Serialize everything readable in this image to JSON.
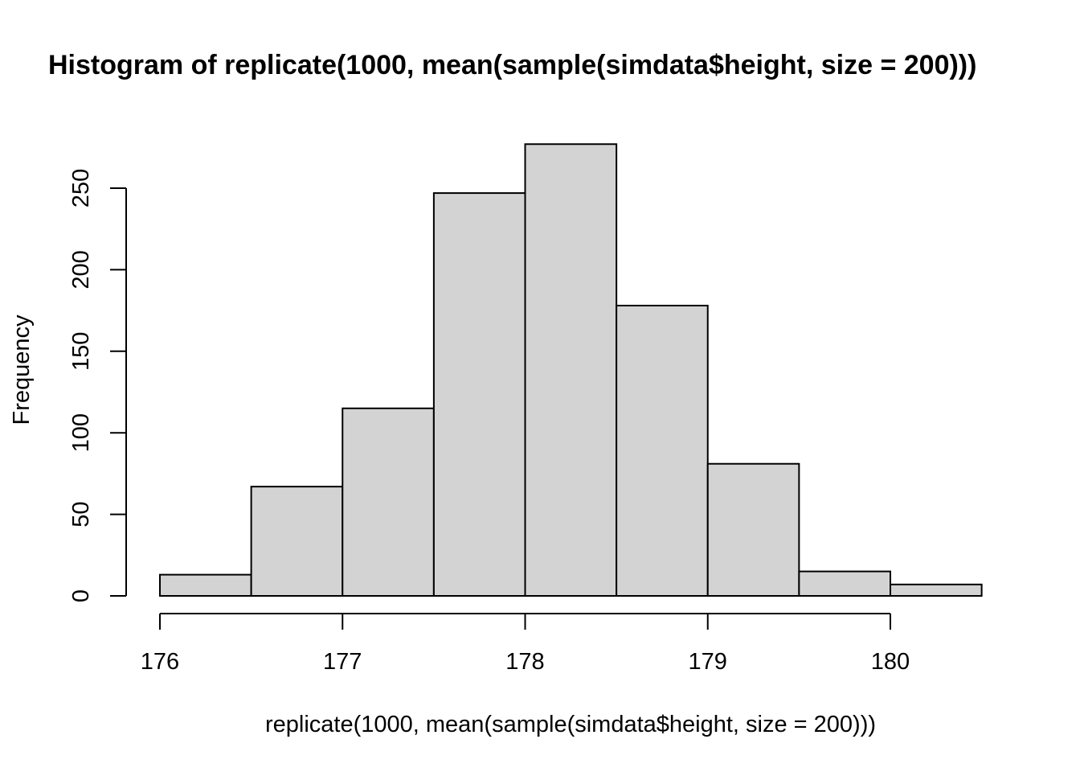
{
  "chart_data": {
    "type": "bar",
    "histogram": true,
    "title": "Histogram of replicate(1000, mean(sample(simdata$height, size = 200)))",
    "xlabel": "replicate(1000, mean(sample(simdata$height, size = 200)))",
    "ylabel": "Frequency",
    "bin_edges": [
      176.0,
      176.5,
      177.0,
      177.5,
      178.0,
      178.5,
      179.0,
      179.5,
      180.0,
      180.5
    ],
    "values": [
      13,
      67,
      115,
      247,
      277,
      178,
      81,
      15,
      7
    ],
    "xlim": [
      176,
      180.5
    ],
    "ylim": [
      0,
      277
    ],
    "x_ticks": [
      176,
      177,
      178,
      179,
      180
    ],
    "y_ticks": [
      0,
      50,
      100,
      150,
      200,
      250
    ],
    "grid": false,
    "bar_color": "#d3d3d3",
    "edge_color": "#000000"
  }
}
